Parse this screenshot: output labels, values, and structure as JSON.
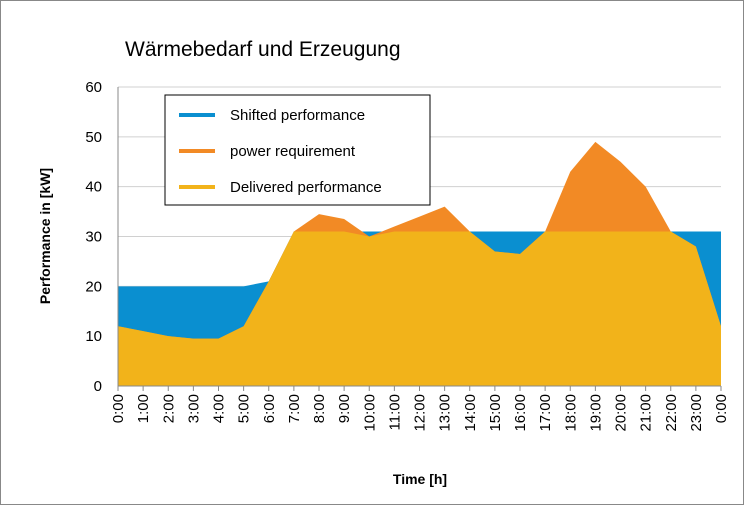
{
  "chart_data": {
    "type": "area",
    "title": "Wärmebedarf und Erzeugung",
    "xlabel": "Time [h]",
    "ylabel": "Performance in [kW]",
    "categories": [
      "0:00",
      "1:00",
      "2:00",
      "3:00",
      "4:00",
      "5:00",
      "6:00",
      "7:00",
      "8:00",
      "9:00",
      "10:00",
      "11:00",
      "12:00",
      "13:00",
      "14:00",
      "15:00",
      "16:00",
      "17:00",
      "18:00",
      "19:00",
      "20:00",
      "21:00",
      "22:00",
      "23:00",
      "0:00"
    ],
    "series": [
      {
        "name": "Shifted performance",
        "color": "#0a8fd0",
        "values": [
          20,
          20,
          20,
          20,
          20,
          20,
          21,
          31,
          31,
          31,
          31,
          31,
          31,
          31,
          31,
          31,
          31,
          31,
          31,
          31,
          31,
          31,
          31,
          31,
          31
        ]
      },
      {
        "name": "power requirement",
        "color": "#f28a25",
        "values": [
          12,
          11,
          10,
          9.5,
          9.5,
          12,
          21,
          31,
          34.5,
          33.5,
          30,
          32,
          34,
          36,
          31,
          27,
          26.5,
          31,
          43,
          49,
          45,
          40,
          31,
          28,
          12
        ]
      },
      {
        "name": "Delivered performance",
        "color": "#f2b31a",
        "values": [
          12,
          11,
          10,
          9.5,
          9.5,
          12,
          21,
          31,
          31,
          31,
          30,
          31,
          31,
          31,
          31,
          27,
          26.5,
          31,
          31,
          31,
          31,
          31,
          31,
          28,
          12
        ]
      }
    ],
    "ylim": [
      0,
      60
    ],
    "yticks": [
      0,
      10,
      20,
      30,
      40,
      50,
      60
    ],
    "grid": true,
    "legend": "upper left"
  }
}
